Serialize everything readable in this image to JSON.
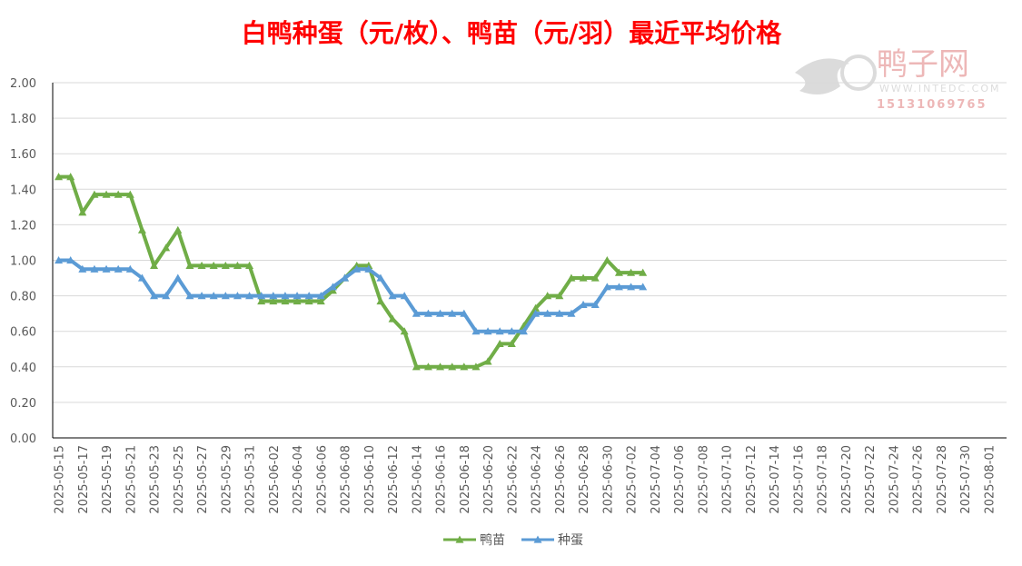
{
  "chart_data": {
    "type": "line",
    "title": "白鸭种蛋（元/枚）、鸭苗（元/羽）最近平均价格",
    "watermark": {
      "brand": "鸭子网",
      "url": "WWW.INTEDC.COM",
      "phone": "15131069765"
    },
    "categories": [
      "2025-05-15",
      null,
      "2025-05-17",
      null,
      "2025-05-19",
      null,
      "2025-05-21",
      null,
      "2025-05-23",
      null,
      "2025-05-25",
      null,
      "2025-05-27",
      null,
      "2025-05-29",
      null,
      "2025-05-31",
      null,
      "2025-06-02",
      null,
      "2025-06-04",
      null,
      "2025-06-06",
      null,
      "2025-06-08",
      null,
      "2025-06-10",
      null,
      "2025-06-12",
      null,
      "2025-06-14",
      null,
      "2025-06-16",
      null,
      "2025-06-18",
      null,
      "2025-06-20",
      null,
      "2025-06-22",
      null,
      "2025-06-24",
      null,
      "2025-06-26",
      null,
      "2025-06-28",
      null,
      "2025-06-30",
      null,
      "2025-07-02",
      null,
      "2025-07-04",
      null,
      "2025-07-06",
      null,
      "2025-07-08",
      null,
      "2025-07-10",
      null,
      "2025-07-12",
      null,
      "2025-07-14",
      null,
      "2025-07-16",
      null,
      "2025-07-18",
      null,
      "2025-07-20",
      null,
      "2025-07-22",
      null,
      "2025-07-24",
      null,
      "2025-07-26",
      null,
      "2025-07-28",
      null,
      "2025-07-30",
      null,
      "2025-08-01",
      null
    ],
    "series": [
      {
        "name": "鸭苗",
        "color": "#70ad47",
        "values": [
          1.47,
          1.47,
          1.27,
          1.37,
          1.37,
          1.37,
          1.37,
          1.17,
          0.97,
          1.07,
          1.17,
          0.97,
          0.97,
          0.97,
          0.97,
          0.97,
          0.97,
          0.77,
          0.77,
          0.77,
          0.77,
          0.77,
          0.77,
          0.83,
          0.9,
          0.97,
          0.97,
          0.77,
          0.67,
          0.6,
          0.4,
          0.4,
          0.4,
          0.4,
          0.4,
          0.4,
          0.43,
          0.53,
          0.53,
          0.63,
          0.73,
          0.8,
          0.8,
          0.9,
          0.9,
          0.9,
          1.0,
          0.93,
          0.93,
          0.93,
          null,
          null,
          null,
          null,
          null,
          null,
          null,
          null,
          null,
          null,
          null,
          null,
          null,
          null,
          null,
          null,
          null,
          null,
          null,
          null,
          null,
          null,
          null,
          null,
          null,
          null,
          null,
          null,
          null,
          null
        ]
      },
      {
        "name": "种蛋",
        "color": "#5b9bd5",
        "values": [
          1.0,
          1.0,
          0.95,
          0.95,
          0.95,
          0.95,
          0.95,
          0.9,
          0.8,
          0.8,
          0.9,
          0.8,
          0.8,
          0.8,
          0.8,
          0.8,
          0.8,
          0.8,
          0.8,
          0.8,
          0.8,
          0.8,
          0.8,
          0.85,
          0.9,
          0.95,
          0.95,
          0.9,
          0.8,
          0.8,
          0.7,
          0.7,
          0.7,
          0.7,
          0.7,
          0.6,
          0.6,
          0.6,
          0.6,
          0.6,
          0.7,
          0.7,
          0.7,
          0.7,
          0.75,
          0.75,
          0.85,
          0.85,
          0.85,
          0.85,
          null,
          null,
          null,
          null,
          null,
          null,
          null,
          null,
          null,
          null,
          null,
          null,
          null,
          null,
          null,
          null,
          null,
          null,
          null,
          null,
          null,
          null,
          null,
          null,
          null,
          null,
          null,
          null,
          null,
          null
        ]
      }
    ],
    "ylim": [
      0,
      2
    ],
    "yticks": [
      {
        "value": 0,
        "label": "0.00"
      },
      {
        "value": 0.2,
        "label": "0.20"
      },
      {
        "value": 0.4,
        "label": "0.40"
      },
      {
        "value": 0.6,
        "label": "0.60"
      },
      {
        "value": 0.8,
        "label": "0.80"
      },
      {
        "value": 1,
        "label": "1.00"
      },
      {
        "value": 1.2,
        "label": "1.20"
      },
      {
        "value": 1.4,
        "label": "1.40"
      },
      {
        "value": 1.6,
        "label": "1.60"
      },
      {
        "value": 1.8,
        "label": "1.80"
      },
      {
        "value": 2,
        "label": "2.00"
      }
    ],
    "grid": true,
    "legend": "bottom"
  }
}
